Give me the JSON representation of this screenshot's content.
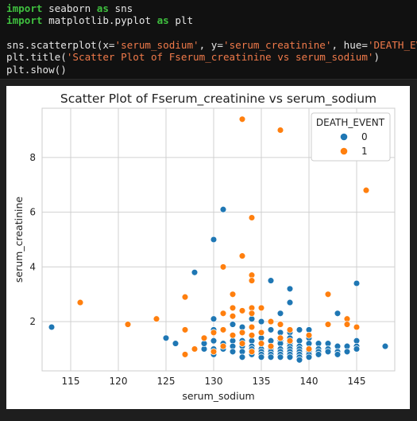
{
  "code": {
    "lines": [
      [
        {
          "t": "import",
          "c": "kw"
        },
        {
          "t": " seaborn ",
          "c": "fn"
        },
        {
          "t": "as",
          "c": "kw"
        },
        {
          "t": " sns",
          "c": "fn"
        }
      ],
      [
        {
          "t": "import",
          "c": "kw"
        },
        {
          "t": " matplotlib.pyplot ",
          "c": "fn"
        },
        {
          "t": "as",
          "c": "kw"
        },
        {
          "t": " plt",
          "c": "fn"
        }
      ],
      [],
      [
        {
          "t": "sns.scatterplot(x=",
          "c": "fn"
        },
        {
          "t": "'serum_sodium'",
          "c": "str"
        },
        {
          "t": ", y=",
          "c": "fn"
        },
        {
          "t": "'serum_creatinine'",
          "c": "str"
        },
        {
          "t": ", hue=",
          "c": "fn"
        },
        {
          "t": "'DEATH_EVENT'",
          "c": "str"
        }
      ],
      [
        {
          "t": "plt.title(",
          "c": "fn"
        },
        {
          "t": "'Scatter Plot of Fserum_creatinine vs serum_sodium'",
          "c": "str"
        },
        {
          "t": ")",
          "c": "fn"
        }
      ],
      [
        {
          "t": "plt.show()",
          "c": "fn"
        }
      ]
    ]
  },
  "colors": {
    "series0": "#1f77b4",
    "series1": "#ff7f0e",
    "axes_bg": "#ffffff",
    "grid": "#d0d0d0"
  },
  "chart_data": {
    "type": "scatter",
    "title": "Scatter Plot of Fserum_creatinine vs serum_sodium",
    "xlabel": "serum_sodium",
    "ylabel": "serum_creatinine",
    "xlim": [
      112,
      149
    ],
    "ylim": [
      0.2,
      9.8
    ],
    "xticks": [
      115,
      120,
      125,
      130,
      135,
      140,
      145
    ],
    "yticks": [
      2,
      4,
      6,
      8
    ],
    "grid": true,
    "legend": {
      "title": "DEATH_EVENT",
      "placement": "top-right",
      "entries": [
        "0",
        "1"
      ]
    },
    "series": [
      {
        "name": "0",
        "points": [
          [
            113,
            1.8
          ],
          [
            125,
            1.4
          ],
          [
            126,
            1.2
          ],
          [
            128,
            3.8
          ],
          [
            129,
            1.0
          ],
          [
            129,
            1.2
          ],
          [
            130,
            5.0
          ],
          [
            130,
            2.1
          ],
          [
            130,
            1.7
          ],
          [
            130,
            1.3
          ],
          [
            130,
            1.0
          ],
          [
            130,
            0.8
          ],
          [
            131,
            6.1
          ],
          [
            131,
            1.2
          ],
          [
            131,
            1.0
          ],
          [
            132,
            1.9
          ],
          [
            132,
            1.3
          ],
          [
            132,
            1.1
          ],
          [
            132,
            0.9
          ],
          [
            133,
            1.8
          ],
          [
            133,
            1.3
          ],
          [
            133,
            1.1
          ],
          [
            133,
            0.9
          ],
          [
            133,
            0.7
          ],
          [
            134,
            2.1
          ],
          [
            134,
            1.8
          ],
          [
            134,
            1.3
          ],
          [
            134,
            1.1
          ],
          [
            134,
            1.0
          ],
          [
            134,
            0.9
          ],
          [
            134,
            0.8
          ],
          [
            135,
            2.0
          ],
          [
            135,
            1.4
          ],
          [
            135,
            1.2
          ],
          [
            135,
            1.0
          ],
          [
            135,
            0.9
          ],
          [
            135,
            0.8
          ],
          [
            135,
            0.7
          ],
          [
            136,
            3.5
          ],
          [
            136,
            1.7
          ],
          [
            136,
            1.3
          ],
          [
            136,
            1.1
          ],
          [
            136,
            1.0
          ],
          [
            136,
            0.9
          ],
          [
            136,
            0.8
          ],
          [
            136,
            0.7
          ],
          [
            137,
            2.3
          ],
          [
            137,
            1.6
          ],
          [
            137,
            1.3
          ],
          [
            137,
            1.2
          ],
          [
            137,
            1.0
          ],
          [
            137,
            0.9
          ],
          [
            137,
            0.8
          ],
          [
            137,
            0.7
          ],
          [
            138,
            3.2
          ],
          [
            138,
            2.7
          ],
          [
            138,
            1.6
          ],
          [
            138,
            1.4
          ],
          [
            138,
            1.2
          ],
          [
            138,
            1.1
          ],
          [
            138,
            1.0
          ],
          [
            138,
            0.9
          ],
          [
            138,
            0.8
          ],
          [
            138,
            0.7
          ],
          [
            139,
            1.7
          ],
          [
            139,
            1.3
          ],
          [
            139,
            1.1
          ],
          [
            139,
            1.0
          ],
          [
            139,
            0.9
          ],
          [
            139,
            0.8
          ],
          [
            139,
            0.7
          ],
          [
            139,
            0.6
          ],
          [
            140,
            1.7
          ],
          [
            140,
            1.4
          ],
          [
            140,
            1.2
          ],
          [
            140,
            1.0
          ],
          [
            140,
            0.9
          ],
          [
            140,
            0.8
          ],
          [
            140,
            0.7
          ],
          [
            141,
            1.2
          ],
          [
            141,
            1.0
          ],
          [
            141,
            0.9
          ],
          [
            141,
            0.8
          ],
          [
            142,
            1.2
          ],
          [
            142,
            1.0
          ],
          [
            142,
            0.9
          ],
          [
            143,
            2.3
          ],
          [
            143,
            1.1
          ],
          [
            143,
            0.9
          ],
          [
            143,
            0.8
          ],
          [
            144,
            1.1
          ],
          [
            144,
            0.9
          ],
          [
            145,
            3.4
          ],
          [
            145,
            1.3
          ],
          [
            145,
            1.1
          ],
          [
            145,
            1.0
          ],
          [
            148,
            1.1
          ]
        ]
      },
      {
        "name": "1",
        "points": [
          [
            116,
            2.7
          ],
          [
            121,
            1.9
          ],
          [
            124,
            2.1
          ],
          [
            127,
            2.9
          ],
          [
            127,
            1.7
          ],
          [
            127,
            0.8
          ],
          [
            128,
            1.0
          ],
          [
            129,
            1.4
          ],
          [
            130,
            1.6
          ],
          [
            130,
            0.9
          ],
          [
            131,
            4.0
          ],
          [
            131,
            2.3
          ],
          [
            131,
            1.7
          ],
          [
            131,
            1.1
          ],
          [
            132,
            3.0
          ],
          [
            132,
            2.5
          ],
          [
            132,
            2.2
          ],
          [
            132,
            1.5
          ],
          [
            133,
            9.4
          ],
          [
            133,
            4.4
          ],
          [
            133,
            2.4
          ],
          [
            133,
            1.6
          ],
          [
            133,
            1.2
          ],
          [
            134,
            5.8
          ],
          [
            134,
            3.7
          ],
          [
            134,
            3.5
          ],
          [
            134,
            2.5
          ],
          [
            134,
            2.3
          ],
          [
            134,
            1.8
          ],
          [
            134,
            1.5
          ],
          [
            134,
            0.9
          ],
          [
            135,
            2.5
          ],
          [
            135,
            1.6
          ],
          [
            135,
            1.2
          ],
          [
            136,
            2.0
          ],
          [
            136,
            1.1
          ],
          [
            137,
            9.0
          ],
          [
            137,
            1.9
          ],
          [
            137,
            1.4
          ],
          [
            138,
            1.7
          ],
          [
            138,
            1.3
          ],
          [
            140,
            1.5
          ],
          [
            140,
            1.0
          ],
          [
            142,
            3.0
          ],
          [
            142,
            1.9
          ],
          [
            144,
            2.1
          ],
          [
            144,
            1.9
          ],
          [
            145,
            1.8
          ],
          [
            146,
            6.8
          ]
        ]
      }
    ]
  }
}
